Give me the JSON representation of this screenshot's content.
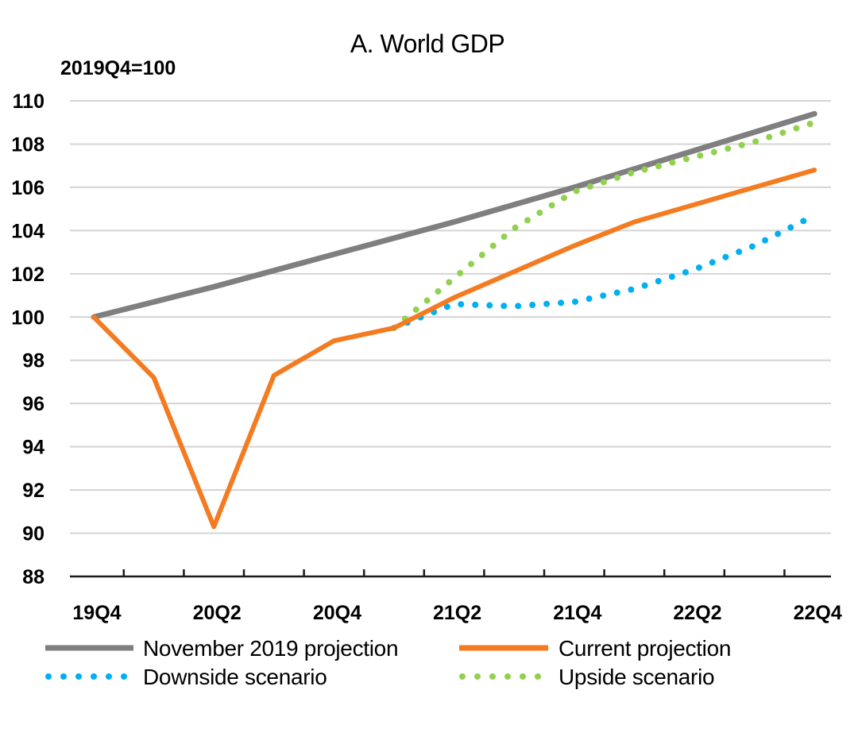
{
  "chart_data": {
    "type": "line",
    "title": "A. World GDP",
    "unit_label": "2019Q4=100",
    "xlabel": "",
    "ylabel": "",
    "quarters": [
      "19Q4",
      "20Q1",
      "20Q2",
      "20Q3",
      "20Q4",
      "21Q1",
      "21Q2",
      "21Q3",
      "21Q4",
      "22Q1",
      "22Q2",
      "22Q3",
      "22Q4"
    ],
    "x_tick_labels": [
      "19Q4",
      "20Q2",
      "20Q4",
      "21Q2",
      "21Q4",
      "22Q2",
      "22Q4"
    ],
    "y_ticks": [
      88,
      90,
      92,
      94,
      96,
      98,
      100,
      102,
      104,
      106,
      108,
      110
    ],
    "ylim": [
      88,
      110
    ],
    "grid": "horizontal",
    "legend_position": "bottom",
    "series": [
      {
        "name": "November 2019 projection",
        "style": "solid",
        "color": "#7f7f7f",
        "x": [
          "19Q4",
          "20Q2",
          "20Q4",
          "21Q2",
          "21Q4",
          "22Q2",
          "22Q4"
        ],
        "values": [
          100.0,
          101.4,
          102.9,
          104.4,
          106.0,
          107.7,
          109.4
        ]
      },
      {
        "name": "Current projection",
        "style": "solid",
        "color": "#f47b20",
        "x": [
          "19Q4",
          "20Q1",
          "20Q2",
          "20Q3",
          "20Q4",
          "21Q1",
          "21Q2",
          "21Q3",
          "21Q4",
          "22Q1",
          "22Q2",
          "22Q3",
          "22Q4"
        ],
        "values": [
          100.0,
          97.2,
          90.3,
          97.3,
          98.9,
          99.5,
          100.9,
          102.1,
          103.3,
          104.4,
          105.2,
          106.0,
          106.8
        ]
      },
      {
        "name": "Downside scenario",
        "style": "dotted",
        "color": "#00b0f0",
        "x": [
          "21Q1",
          "21Q2",
          "21Q3",
          "21Q4",
          "22Q1",
          "22Q2",
          "22Q3",
          "22Q4"
        ],
        "values": [
          99.5,
          100.6,
          100.5,
          100.7,
          101.3,
          102.2,
          103.3,
          104.7
        ]
      },
      {
        "name": "Upside scenario",
        "style": "dotted",
        "color": "#92d050",
        "x": [
          "21Q1",
          "21Q2",
          "21Q3",
          "21Q4",
          "22Q1",
          "22Q2",
          "22Q3",
          "22Q4"
        ],
        "values": [
          99.5,
          101.8,
          104.1,
          105.8,
          106.7,
          107.4,
          108.1,
          109.0
        ]
      }
    ]
  }
}
